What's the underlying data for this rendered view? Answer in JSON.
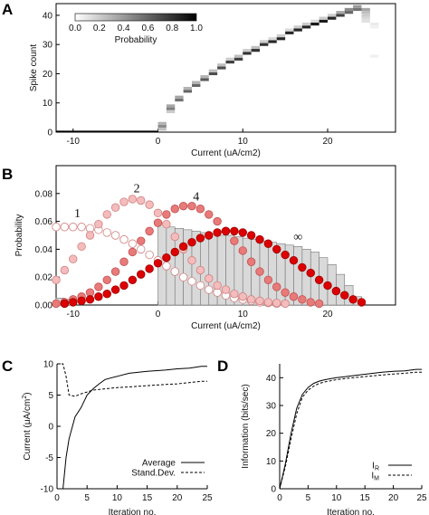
{
  "panels": [
    "A",
    "B",
    "C",
    "D"
  ],
  "chart_data": [
    {
      "panel": "A",
      "type": "heatmap",
      "xlabel": "Current (uA/cm2)",
      "ylabel": "Spike count",
      "xlim": [
        -12,
        28
      ],
      "ylim": [
        0,
        44
      ],
      "xticks": [
        -10,
        0,
        10,
        20
      ],
      "yticks": [
        0,
        10,
        20,
        30,
        40
      ],
      "colorbar": {
        "label": "Probability",
        "ticks": [
          "0.0",
          "0.2",
          "0.4",
          "0.6",
          "0.8",
          "1.0"
        ],
        "range": [
          0,
          1
        ],
        "cmap": "white-to-black"
      },
      "zero_spike_band": {
        "x_from": -12,
        "x_to": 0,
        "probability": 1.0
      },
      "cells": [
        {
          "x": 0.5,
          "y": 2,
          "p": 0.45
        },
        {
          "x": 0.5,
          "y": 3,
          "p": 0.3
        },
        {
          "x": 0.5,
          "y": 1,
          "p": 0.25
        },
        {
          "x": 1.5,
          "y": 8,
          "p": 0.5
        },
        {
          "x": 1.5,
          "y": 9,
          "p": 0.35
        },
        {
          "x": 1.5,
          "y": 7,
          "p": 0.2
        },
        {
          "x": 2.5,
          "y": 11,
          "p": 0.55
        },
        {
          "x": 2.5,
          "y": 12,
          "p": 0.35
        },
        {
          "x": 3.5,
          "y": 14,
          "p": 0.6
        },
        {
          "x": 3.5,
          "y": 15,
          "p": 0.3
        },
        {
          "x": 4.5,
          "y": 16,
          "p": 0.6
        },
        {
          "x": 4.5,
          "y": 17,
          "p": 0.3
        },
        {
          "x": 5.5,
          "y": 18,
          "p": 0.65
        },
        {
          "x": 5.5,
          "y": 19,
          "p": 0.3
        },
        {
          "x": 6.5,
          "y": 20,
          "p": 0.7
        },
        {
          "x": 6.5,
          "y": 21,
          "p": 0.25
        },
        {
          "x": 7.5,
          "y": 22,
          "p": 0.7
        },
        {
          "x": 7.5,
          "y": 23,
          "p": 0.25
        },
        {
          "x": 8.5,
          "y": 24,
          "p": 0.75
        },
        {
          "x": 8.5,
          "y": 25,
          "p": 0.2
        },
        {
          "x": 9.5,
          "y": 25,
          "p": 0.75
        },
        {
          "x": 9.5,
          "y": 26,
          "p": 0.25
        },
        {
          "x": 10.5,
          "y": 27,
          "p": 0.8
        },
        {
          "x": 10.5,
          "y": 28,
          "p": 0.2
        },
        {
          "x": 11.5,
          "y": 28,
          "p": 0.8
        },
        {
          "x": 11.5,
          "y": 29,
          "p": 0.25
        },
        {
          "x": 12.5,
          "y": 30,
          "p": 0.8
        },
        {
          "x": 12.5,
          "y": 31,
          "p": 0.2
        },
        {
          "x": 13.5,
          "y": 31,
          "p": 0.85
        },
        {
          "x": 13.5,
          "y": 32,
          "p": 0.15
        },
        {
          "x": 14.5,
          "y": 32,
          "p": 0.85
        },
        {
          "x": 14.5,
          "y": 33,
          "p": 0.2
        },
        {
          "x": 15.5,
          "y": 34,
          "p": 0.85
        },
        {
          "x": 15.5,
          "y": 35,
          "p": 0.15
        },
        {
          "x": 16.5,
          "y": 35,
          "p": 0.85
        },
        {
          "x": 16.5,
          "y": 36,
          "p": 0.2
        },
        {
          "x": 17.5,
          "y": 36,
          "p": 0.85
        },
        {
          "x": 17.5,
          "y": 37,
          "p": 0.2
        },
        {
          "x": 18.5,
          "y": 37,
          "p": 0.9
        },
        {
          "x": 18.5,
          "y": 38,
          "p": 0.15
        },
        {
          "x": 19.5,
          "y": 38,
          "p": 0.9
        },
        {
          "x": 19.5,
          "y": 39,
          "p": 0.2
        },
        {
          "x": 20.5,
          "y": 39,
          "p": 0.85
        },
        {
          "x": 20.5,
          "y": 40,
          "p": 0.2
        },
        {
          "x": 21.5,
          "y": 40,
          "p": 0.75
        },
        {
          "x": 21.5,
          "y": 41,
          "p": 0.35
        },
        {
          "x": 22.5,
          "y": 41,
          "p": 0.6
        },
        {
          "x": 22.5,
          "y": 42,
          "p": 0.45
        },
        {
          "x": 23.5,
          "y": 42,
          "p": 0.55
        },
        {
          "x": 23.5,
          "y": 43,
          "p": 0.4
        },
        {
          "x": 24.5,
          "y": 42,
          "p": 0.35
        },
        {
          "x": 24.5,
          "y": 41,
          "p": 0.25
        },
        {
          "x": 24.5,
          "y": 40,
          "p": 0.2
        },
        {
          "x": 24.5,
          "y": 39,
          "p": 0.15
        },
        {
          "x": 24.5,
          "y": 38,
          "p": 0.12
        },
        {
          "x": 25.5,
          "y": 37,
          "p": 0.08
        },
        {
          "x": 25.5,
          "y": 36,
          "p": 0.06
        },
        {
          "x": 25.5,
          "y": 26,
          "p": 0.06
        }
      ]
    },
    {
      "panel": "B",
      "type": "scatter",
      "xlabel": "Current (uA/cm2)",
      "ylabel": "Probability",
      "xlim": [
        -12,
        28
      ],
      "ylim": [
        0,
        0.1
      ],
      "xticks": [
        -10,
        0,
        10,
        20
      ],
      "yticks": [
        "0.00",
        "0.02",
        "0.04",
        "0.06",
        "0.08"
      ],
      "ytick_values": [
        0,
        0.02,
        0.04,
        0.06,
        0.08
      ],
      "curve_labels": [
        {
          "text": "1",
          "x": -9.5,
          "y": 0.063
        },
        {
          "text": "2",
          "x": -2.5,
          "y": 0.081
        },
        {
          "text": "4",
          "x": 4.5,
          "y": 0.075
        },
        {
          "text": "∞",
          "x": 16.5,
          "y": 0.046
        }
      ],
      "bars": {
        "x": [
          -11.5,
          -10.5,
          0.5,
          1.5,
          2.5,
          3.5,
          4.5,
          5.5,
          6.5,
          7.5,
          8.5,
          9.5,
          10.5,
          11.5,
          12.5,
          13.5,
          14.5,
          15.5,
          16.5,
          17.5,
          18.5,
          19.5,
          20.5,
          21.5,
          22.5,
          23.5
        ],
        "values": [
          0.005,
          0.004,
          0.059,
          0.056,
          0.055,
          0.054,
          0.053,
          0.052,
          0.051,
          0.05,
          0.05,
          0.049,
          0.048,
          0.047,
          0.046,
          0.045,
          0.044,
          0.043,
          0.042,
          0.04,
          0.038,
          0.034,
          0.029,
          0.022,
          0.014,
          0.006
        ]
      },
      "series": [
        {
          "name": "1",
          "fill": "#ffffff",
          "stroke": "#d08080",
          "x": [
            -12,
            -11,
            -10,
            -9,
            -8,
            -7,
            -6,
            -5,
            -4,
            -3,
            -2,
            -1,
            0,
            1,
            2,
            3,
            4,
            5,
            6,
            7,
            8,
            9,
            10,
            11,
            12,
            13,
            14
          ],
          "values": [
            0.056,
            0.056,
            0.056,
            0.056,
            0.055,
            0.054,
            0.052,
            0.05,
            0.047,
            0.044,
            0.04,
            0.036,
            0.032,
            0.028,
            0.024,
            0.02,
            0.017,
            0.014,
            0.011,
            0.009,
            0.007,
            0.005,
            0.004,
            0.003,
            0.002,
            0.0015,
            0.001
          ]
        },
        {
          "name": "2",
          "fill": "#f4bcbc",
          "stroke": "#d08080",
          "x": [
            -12,
            -11,
            -10,
            -9,
            -8,
            -7,
            -6,
            -5,
            -4,
            -3,
            -2,
            -1,
            0,
            1,
            2,
            3,
            4,
            5,
            6,
            7,
            8,
            9,
            10,
            11,
            12,
            13,
            14,
            15
          ],
          "values": [
            0.018,
            0.025,
            0.033,
            0.042,
            0.05,
            0.058,
            0.065,
            0.07,
            0.074,
            0.076,
            0.075,
            0.072,
            0.066,
            0.058,
            0.049,
            0.04,
            0.032,
            0.025,
            0.019,
            0.014,
            0.011,
            0.008,
            0.006,
            0.004,
            0.003,
            0.002,
            0.0015,
            0.001
          ]
        },
        {
          "name": "4",
          "fill": "#e87a7a",
          "stroke": "#c25050",
          "x": [
            -12,
            -11,
            -10,
            -9,
            -8,
            -7,
            -6,
            -5,
            -4,
            -3,
            -2,
            -1,
            0,
            1,
            2,
            3,
            4,
            5,
            6,
            7,
            8,
            9,
            10,
            11,
            12,
            13,
            14,
            15,
            16,
            17,
            18,
            19
          ],
          "values": [
            0.001,
            0.002,
            0.004,
            0.006,
            0.009,
            0.013,
            0.018,
            0.024,
            0.031,
            0.038,
            0.046,
            0.053,
            0.059,
            0.065,
            0.069,
            0.071,
            0.071,
            0.069,
            0.065,
            0.06,
            0.053,
            0.046,
            0.039,
            0.031,
            0.024,
            0.018,
            0.013,
            0.009,
            0.006,
            0.004,
            0.002,
            0.001
          ]
        },
        {
          "name": "∞",
          "fill": "#dd0000",
          "stroke": "#990000",
          "x": [
            -11,
            -10,
            -9,
            -8,
            -7,
            -6,
            -5,
            -4,
            -3,
            -2,
            -1,
            0,
            1,
            2,
            3,
            4,
            5,
            6,
            7,
            8,
            9,
            10,
            11,
            12,
            13,
            14,
            15,
            16,
            17,
            18,
            19,
            20,
            21,
            22,
            23,
            24
          ],
          "values": [
            0.001,
            0.002,
            0.003,
            0.004,
            0.006,
            0.008,
            0.011,
            0.014,
            0.018,
            0.022,
            0.026,
            0.03,
            0.034,
            0.038,
            0.042,
            0.045,
            0.048,
            0.05,
            0.052,
            0.053,
            0.053,
            0.052,
            0.05,
            0.047,
            0.044,
            0.04,
            0.036,
            0.032,
            0.027,
            0.023,
            0.018,
            0.014,
            0.01,
            0.007,
            0.004,
            0.002
          ]
        }
      ]
    },
    {
      "panel": "C",
      "type": "line",
      "xlabel": "Iteration no.",
      "ylabel": "Current (μA/cm²)",
      "ylabel_main": "Current (μA/cm",
      "ylabel_sup": "2",
      "ylabel_close": ")",
      "xlim": [
        0,
        25
      ],
      "ylim": [
        -10,
        10
      ],
      "xticks": [
        0,
        5,
        10,
        15,
        20,
        25
      ],
      "yticks": [
        -10,
        -5,
        0,
        5,
        10
      ],
      "legend_position": "bottom-right",
      "series": [
        {
          "name": "Average",
          "dash": "solid",
          "x": [
            0,
            1,
            1.5,
            2,
            3,
            4,
            5,
            6,
            7,
            8,
            10,
            12,
            15,
            18,
            20,
            22,
            24,
            25
          ],
          "values": [
            -10,
            -10,
            -5,
            -2,
            1.5,
            3,
            5,
            6,
            6.8,
            7.5,
            8,
            8.5,
            8.8,
            9,
            9.2,
            9.3,
            9.6,
            9.6
          ]
        },
        {
          "name": "Stand.Dev.",
          "dash": "dashed",
          "x": [
            0,
            1,
            1.5,
            2,
            3,
            4,
            5,
            6,
            8,
            10,
            12,
            15,
            18,
            20,
            22,
            24,
            25
          ],
          "values": [
            10,
            10,
            8,
            5,
            4.8,
            5.2,
            5.5,
            5.8,
            6,
            6.2,
            6.3,
            6.5,
            6.7,
            6.8,
            7,
            7.2,
            7.2
          ]
        }
      ]
    },
    {
      "panel": "D",
      "type": "line",
      "xlabel": "Iteration no.",
      "ylabel": "Information (bits/sec)",
      "xlim": [
        0,
        25
      ],
      "ylim": [
        0,
        45
      ],
      "xticks": [
        0,
        5,
        10,
        15,
        20,
        25
      ],
      "yticks": [
        0,
        10,
        20,
        30,
        40
      ],
      "legend_position": "bottom-right",
      "series": [
        {
          "name": "IR",
          "name_main": "I",
          "name_sub": "R",
          "dash": "solid",
          "x": [
            0,
            1,
            2,
            3,
            4,
            5,
            6,
            7,
            8,
            10,
            12,
            14,
            16,
            18,
            20,
            22,
            24,
            25
          ],
          "values": [
            0,
            9,
            20,
            29,
            34,
            36.5,
            38,
            38.8,
            39.3,
            40,
            40.5,
            41,
            41.5,
            42,
            42.3,
            42.5,
            43,
            43
          ]
        },
        {
          "name": "IM",
          "name_main": "I",
          "name_sub": "M",
          "dash": "dashed",
          "x": [
            0,
            1,
            2,
            3,
            4,
            5,
            6,
            7,
            8,
            10,
            12,
            14,
            16,
            18,
            20,
            22,
            24,
            25
          ],
          "values": [
            0,
            8,
            18,
            27,
            33,
            35.5,
            37,
            38,
            38.5,
            39.3,
            39.8,
            40.2,
            40.6,
            41,
            41.3,
            41.6,
            42,
            42
          ]
        }
      ]
    }
  ]
}
